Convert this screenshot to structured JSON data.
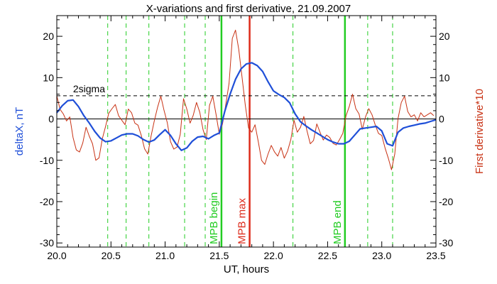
{
  "chart_data": {
    "type": "line",
    "title": "X-variations and first derivative, 21.09.2007",
    "xlabel": "UT, hours",
    "ylabel_left": "deltaX, nT",
    "ylabel_right": "First derivative*10",
    "xlim": [
      20.0,
      23.5
    ],
    "ylim": [
      -31,
      25
    ],
    "xticks": [
      20.0,
      20.5,
      21.0,
      21.5,
      22.0,
      22.5,
      23.0,
      23.5
    ],
    "xtick_labels": [
      "20.0",
      "20.5",
      "21.0",
      "21.5",
      "22.0",
      "22.5",
      "23.0",
      "23.5"
    ],
    "yticks": [
      -30,
      -20,
      -10,
      0,
      10,
      20
    ],
    "ytick_labels": [
      "-30",
      "-20",
      "-10",
      "0",
      "10",
      "20"
    ],
    "colors": {
      "deltaX": "#1f4fd8",
      "derivative": "#c83214",
      "green": "#22cc22",
      "red": "#dd2a1a",
      "axis": "#000000"
    },
    "sigma_level": {
      "y": 5.6,
      "label": "2sigma"
    },
    "zero_line": 0,
    "dashed_markers_x": [
      20.47,
      20.64,
      20.85,
      21.18,
      21.37,
      22.18,
      22.87,
      23.1
    ],
    "vertical_markers": [
      {
        "x": 21.52,
        "label": "MPB begin",
        "color": "#22cc22"
      },
      {
        "x": 21.78,
        "label": "MPB max",
        "color": "#dd2a1a"
      },
      {
        "x": 22.66,
        "label": "MPB end",
        "color": "#22cc22"
      }
    ],
    "series": [
      {
        "key": "deltaX",
        "name": "deltaX, nT",
        "axis": "left",
        "x": [
          20.0,
          20.05,
          20.1,
          20.15,
          20.2,
          20.25,
          20.3,
          20.35,
          20.4,
          20.45,
          20.5,
          20.55,
          20.6,
          20.65,
          20.7,
          20.75,
          20.8,
          20.85,
          20.9,
          20.95,
          21.0,
          21.05,
          21.1,
          21.15,
          21.2,
          21.25,
          21.3,
          21.35,
          21.4,
          21.45,
          21.5,
          21.55,
          21.6,
          21.65,
          21.7,
          21.75,
          21.8,
          21.85,
          21.9,
          21.95,
          22.0,
          22.05,
          22.1,
          22.15,
          22.2,
          22.25,
          22.3,
          22.35,
          22.4,
          22.45,
          22.5,
          22.55,
          22.6,
          22.65,
          22.7,
          22.75,
          22.8,
          22.85,
          22.9,
          22.95,
          23.0,
          23.05,
          23.1,
          23.15,
          23.2,
          23.25,
          23.3,
          23.35,
          23.4,
          23.45,
          23.5
        ],
        "values": [
          1.5,
          3.2,
          4.4,
          4.6,
          3.0,
          0.8,
          -1.0,
          -3.0,
          -4.6,
          -5.5,
          -5.3,
          -4.6,
          -3.9,
          -3.6,
          -3.6,
          -4.1,
          -5.0,
          -5.6,
          -5.1,
          -3.8,
          -2.6,
          -4.0,
          -6.0,
          -7.6,
          -7.0,
          -5.4,
          -4.4,
          -4.2,
          -4.8,
          -4.0,
          -3.4,
          1.8,
          6.0,
          9.6,
          12.1,
          13.3,
          13.6,
          12.9,
          11.5,
          9.0,
          6.8,
          5.9,
          5.2,
          3.9,
          1.2,
          -0.7,
          -1.7,
          -2.6,
          -3.4,
          -4.2,
          -5.0,
          -5.6,
          -6.0,
          -6.0,
          -5.4,
          -3.9,
          -2.4,
          -2.2,
          -2.0,
          -1.8,
          -2.9,
          -6.0,
          -6.5,
          -3.2,
          -2.2,
          -1.8,
          -1.5,
          -1.2,
          -1.0,
          -0.6,
          -0.2
        ]
      },
      {
        "key": "derivative",
        "name": "First derivative*10",
        "axis": "right",
        "x": [
          20.0,
          20.03,
          20.06,
          20.09,
          20.12,
          20.15,
          20.18,
          20.21,
          20.24,
          20.27,
          20.3,
          20.33,
          20.36,
          20.39,
          20.42,
          20.45,
          20.48,
          20.51,
          20.54,
          20.57,
          20.6,
          20.63,
          20.66,
          20.69,
          20.72,
          20.75,
          20.78,
          20.81,
          20.84,
          20.87,
          20.9,
          20.93,
          20.96,
          20.99,
          21.02,
          21.05,
          21.08,
          21.11,
          21.14,
          21.17,
          21.2,
          21.23,
          21.26,
          21.29,
          21.32,
          21.35,
          21.38,
          21.41,
          21.44,
          21.47,
          21.5,
          21.53,
          21.56,
          21.59,
          21.62,
          21.65,
          21.68,
          21.71,
          21.74,
          21.77,
          21.8,
          21.83,
          21.86,
          21.89,
          21.92,
          21.95,
          21.98,
          22.01,
          22.04,
          22.07,
          22.1,
          22.13,
          22.16,
          22.19,
          22.22,
          22.25,
          22.28,
          22.31,
          22.34,
          22.37,
          22.4,
          22.43,
          22.46,
          22.49,
          22.52,
          22.55,
          22.58,
          22.61,
          22.64,
          22.67,
          22.7,
          22.73,
          22.76,
          22.79,
          22.82,
          22.85,
          22.88,
          22.91,
          22.94,
          22.97,
          23.0,
          23.03,
          23.06,
          23.09,
          23.12,
          23.15,
          23.18,
          23.21,
          23.24,
          23.27,
          23.3,
          23.33,
          23.36,
          23.39,
          23.42,
          23.45,
          23.48
        ],
        "values": [
          5.6,
          2.3,
          1.2,
          -0.5,
          0.5,
          -4.5,
          -7.5,
          -8.0,
          -5.8,
          -2.0,
          -4.2,
          -6.0,
          -10.0,
          -9.4,
          -4.8,
          -1.8,
          1.4,
          2.5,
          3.5,
          0.8,
          -0.3,
          -1.4,
          2.4,
          1.5,
          -1.0,
          -1.5,
          -4.0,
          -7.2,
          -8.5,
          -4.2,
          -0.5,
          2.8,
          5.5,
          2.1,
          -0.9,
          -5.5,
          -7.3,
          -6.8,
          -3.7,
          4.9,
          2.4,
          -1.0,
          0.9,
          4.0,
          1.6,
          -2.6,
          -5.0,
          3.3,
          5.5,
          1.1,
          -3.7,
          -1.2,
          3.5,
          8.6,
          19.5,
          21.5,
          16.8,
          10.1,
          3.3,
          -2.2,
          -3.2,
          -1.4,
          -5.5,
          -10.0,
          -11.0,
          -8.5,
          -6.4,
          -8.0,
          -9.0,
          -6.9,
          -9.5,
          -7.8,
          -5.0,
          -0.3,
          -3.2,
          -2.0,
          0.6,
          -2.9,
          -6.0,
          -5.2,
          -1.2,
          -3.2,
          -5.1,
          -3.9,
          -4.5,
          -5.9,
          -6.3,
          -5.0,
          -3.5,
          0.8,
          3.0,
          6.0,
          2.5,
          1.2,
          -2.5,
          0.5,
          2.5,
          1.0,
          -1.5,
          -3.5,
          -4.0,
          -7.0,
          -9.5,
          -12.3,
          -8.5,
          0.1,
          4.0,
          5.5,
          1.8,
          0.5,
          1.0,
          -0.5,
          1.5,
          0.5,
          1.0,
          1.5,
          0.8
        ]
      }
    ]
  }
}
